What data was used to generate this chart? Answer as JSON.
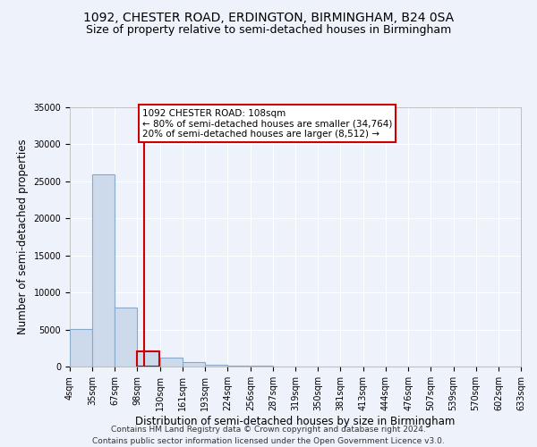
{
  "title1": "1092, CHESTER ROAD, ERDINGTON, BIRMINGHAM, B24 0SA",
  "title2": "Size of property relative to semi-detached houses in Birmingham",
  "xlabel": "Distribution of semi-detached houses by size in Birmingham",
  "ylabel": "Number of semi-detached properties",
  "footer1": "Contains HM Land Registry data © Crown copyright and database right 2024.",
  "footer2": "Contains public sector information licensed under the Open Government Licence v3.0.",
  "annotation_title": "1092 CHESTER ROAD: 108sqm",
  "annotation_line1": "← 80% of semi-detached houses are smaller (34,764)",
  "annotation_line2": "20% of semi-detached houses are larger (8,512) →",
  "property_size": 108,
  "bar_left_edges": [
    4,
    35,
    67,
    98,
    130,
    161,
    193,
    224,
    256,
    287,
    319,
    350,
    381,
    413,
    444,
    476,
    507,
    539,
    570,
    602
  ],
  "bar_heights": [
    5100,
    26000,
    8000,
    2100,
    1200,
    600,
    280,
    130,
    80,
    0,
    0,
    0,
    0,
    0,
    0,
    0,
    0,
    0,
    0,
    0
  ],
  "tick_labels": [
    "4sqm",
    "35sqm",
    "67sqm",
    "98sqm",
    "130sqm",
    "161sqm",
    "193sqm",
    "224sqm",
    "256sqm",
    "287sqm",
    "319sqm",
    "350sqm",
    "381sqm",
    "413sqm",
    "444sqm",
    "476sqm",
    "507sqm",
    "539sqm",
    "570sqm",
    "602sqm",
    "633sqm"
  ],
  "bar_color": "#ccdaeb",
  "bar_edge_color": "#88aac8",
  "highlight_bar_edge_color": "#cc0000",
  "vline_color": "#cc0000",
  "annotation_box_edge": "#cc0000",
  "ylim": [
    0,
    35000
  ],
  "yticks": [
    0,
    5000,
    10000,
    15000,
    20000,
    25000,
    30000,
    35000
  ],
  "bg_color": "#eef2fa",
  "grid_color": "#ffffff",
  "title1_fontsize": 10,
  "title2_fontsize": 9,
  "axis_label_fontsize": 8.5,
  "tick_fontsize": 7,
  "footer_fontsize": 6.5,
  "annotation_fontsize": 7.5
}
